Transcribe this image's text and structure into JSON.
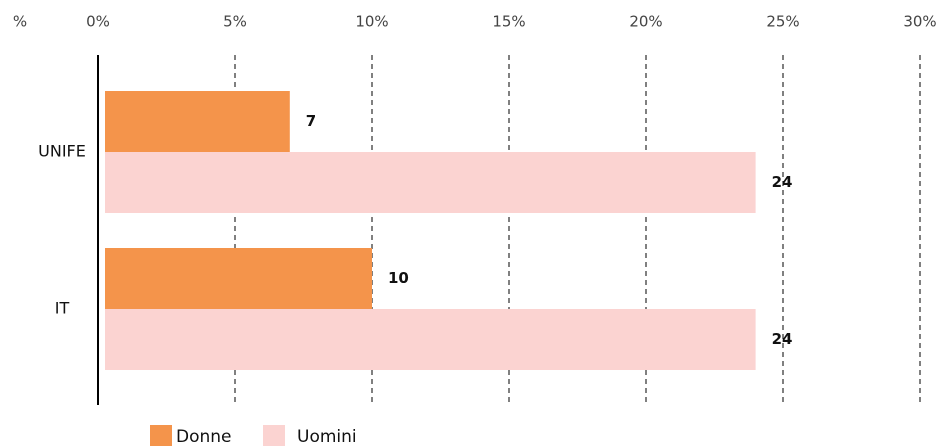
{
  "chart_data": {
    "type": "bar",
    "orientation": "horizontal",
    "axis_label": "%",
    "categories": [
      "UNIFE",
      "IT"
    ],
    "series": [
      {
        "name": "Donne",
        "color": "#f4944b",
        "values": [
          7,
          10
        ]
      },
      {
        "name": "Uomini",
        "color": "#fbd3d1",
        "values": [
          24,
          24
        ]
      }
    ],
    "xlim": [
      0,
      30
    ],
    "xticks": [
      {
        "value": 0,
        "label": "0%"
      },
      {
        "value": 5,
        "label": "5%"
      },
      {
        "value": 10,
        "label": "10%"
      },
      {
        "value": 15,
        "label": "15%"
      },
      {
        "value": 20,
        "label": "20%"
      },
      {
        "value": 25,
        "label": "25%"
      },
      {
        "value": 30,
        "label": "30%"
      }
    ],
    "grid": true,
    "legend": "bottom"
  }
}
